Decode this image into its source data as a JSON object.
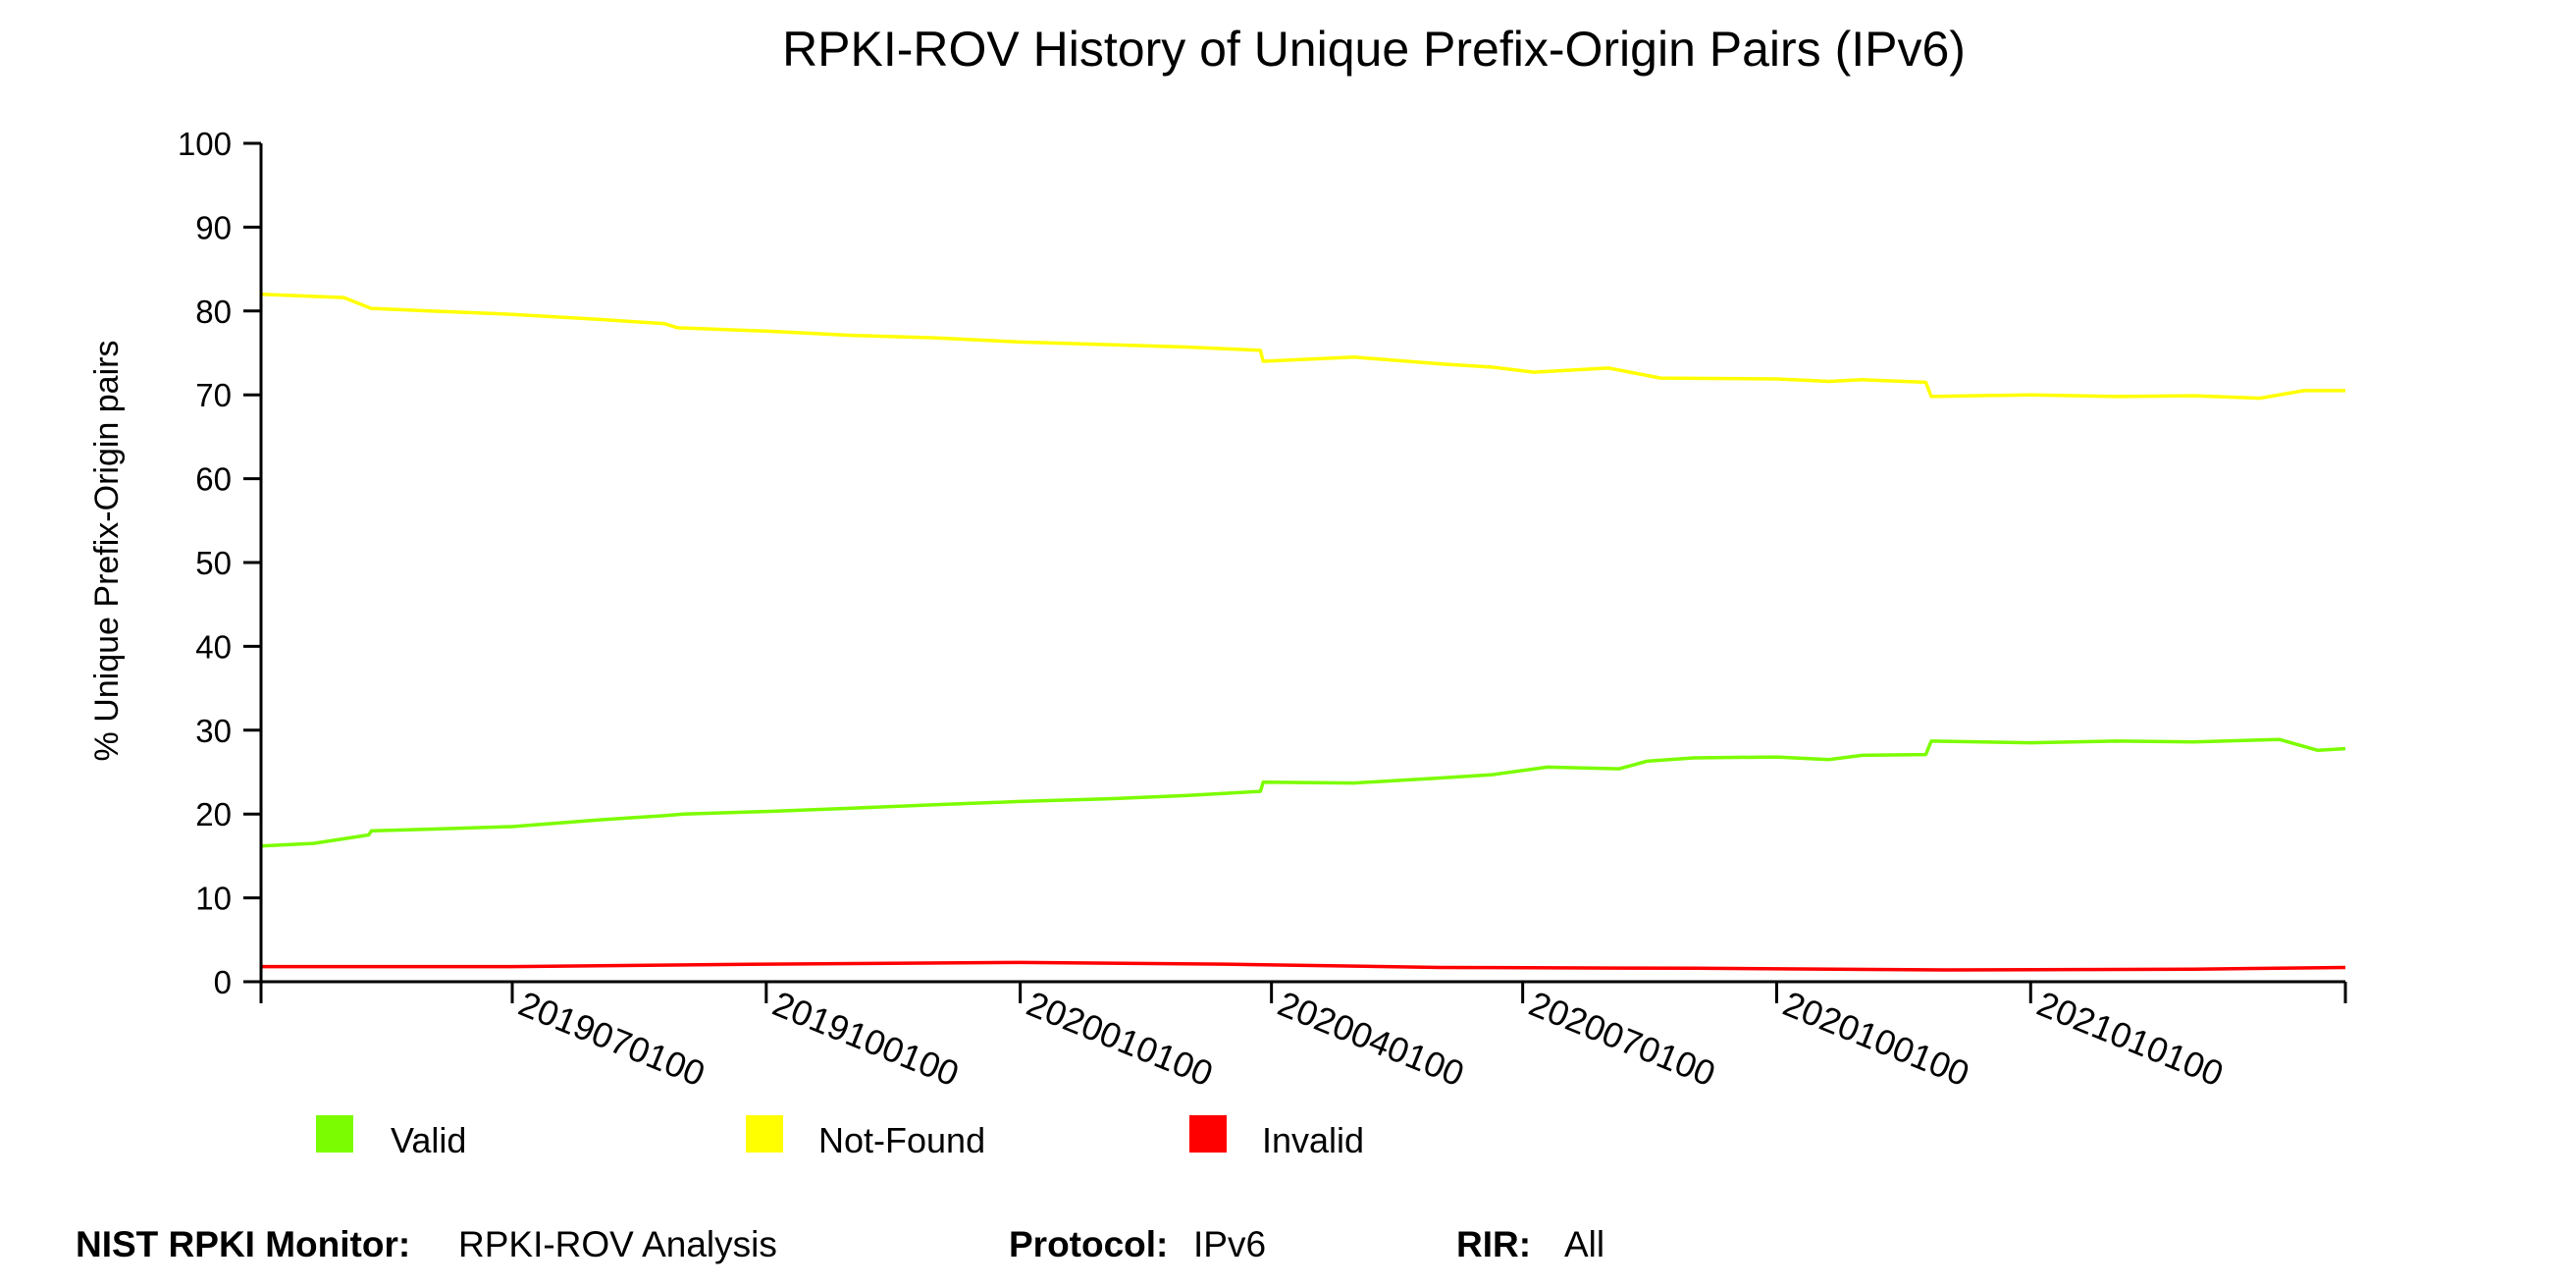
{
  "chart_data": {
    "type": "line",
    "title": "RPKI-ROV History of Unique Prefix-Origin Pairs (IPv6)",
    "xlabel": "",
    "ylabel": "% Unique Prefix-Origin pairs",
    "ylim": [
      0,
      100
    ],
    "yticks": [
      0,
      10,
      20,
      30,
      40,
      50,
      60,
      70,
      80,
      90,
      100
    ],
    "x_tick_labels": [
      "2019070100",
      "2019100100",
      "2020010100",
      "2020040100",
      "2020070100",
      "2020100100",
      "2021010100"
    ],
    "xlim": [
      "2019-04-01",
      "2021-04-25"
    ],
    "x_ticks": [
      "2019-04-01",
      "2019-07-01",
      "2019-10-01",
      "2020-01-01",
      "2020-04-01",
      "2020-07-01",
      "2020-10-01",
      "2021-01-01",
      "2021-04-25"
    ],
    "legend_placement": "bottom",
    "grid": false,
    "series": [
      {
        "name": "Valid",
        "color": "#7cfc00",
        "points": [
          [
            "2019-04-01",
            16.2
          ],
          [
            "2019-04-20",
            16.5
          ],
          [
            "2019-05-10",
            17.5
          ],
          [
            "2019-05-11",
            18.0
          ],
          [
            "2019-06-01",
            18.2
          ],
          [
            "2019-07-01",
            18.5
          ],
          [
            "2019-08-01",
            19.3
          ],
          [
            "2019-08-25",
            19.8
          ],
          [
            "2019-09-01",
            20.0
          ],
          [
            "2019-10-01",
            20.3
          ],
          [
            "2019-11-01",
            20.7
          ],
          [
            "2019-12-01",
            21.1
          ],
          [
            "2020-01-01",
            21.5
          ],
          [
            "2020-02-01",
            21.8
          ],
          [
            "2020-03-01",
            22.2
          ],
          [
            "2020-03-28",
            22.7
          ],
          [
            "2020-03-29",
            23.8
          ],
          [
            "2020-05-01",
            23.7
          ],
          [
            "2020-06-01",
            24.3
          ],
          [
            "2020-06-20",
            24.7
          ],
          [
            "2020-07-10",
            25.6
          ],
          [
            "2020-08-05",
            25.4
          ],
          [
            "2020-08-15",
            26.3
          ],
          [
            "2020-09-01",
            26.7
          ],
          [
            "2020-10-01",
            26.8
          ],
          [
            "2020-10-20",
            26.5
          ],
          [
            "2020-11-01",
            27.0
          ],
          [
            "2020-11-24",
            27.1
          ],
          [
            "2020-11-26",
            28.7
          ],
          [
            "2021-01-01",
            28.5
          ],
          [
            "2021-02-01",
            28.7
          ],
          [
            "2021-03-01",
            28.6
          ],
          [
            "2021-04-01",
            28.9
          ],
          [
            "2021-04-15",
            27.6
          ],
          [
            "2021-04-25",
            27.8
          ]
        ]
      },
      {
        "name": "Not-Found",
        "color": "#ffff00",
        "points": [
          [
            "2019-04-01",
            82.0
          ],
          [
            "2019-05-01",
            81.6
          ],
          [
            "2019-05-11",
            80.3
          ],
          [
            "2019-06-01",
            80.0
          ],
          [
            "2019-07-01",
            79.6
          ],
          [
            "2019-08-01",
            79.0
          ],
          [
            "2019-08-25",
            78.5
          ],
          [
            "2019-08-30",
            78.0
          ],
          [
            "2019-10-01",
            77.6
          ],
          [
            "2019-11-01",
            77.1
          ],
          [
            "2019-12-01",
            76.8
          ],
          [
            "2020-01-01",
            76.3
          ],
          [
            "2020-02-01",
            76.0
          ],
          [
            "2020-03-01",
            75.7
          ],
          [
            "2020-03-28",
            75.3
          ],
          [
            "2020-03-29",
            74.0
          ],
          [
            "2020-05-01",
            74.5
          ],
          [
            "2020-06-01",
            73.7
          ],
          [
            "2020-06-20",
            73.3
          ],
          [
            "2020-07-05",
            72.7
          ],
          [
            "2020-08-01",
            73.2
          ],
          [
            "2020-08-20",
            72.0
          ],
          [
            "2020-10-01",
            71.9
          ],
          [
            "2020-10-20",
            71.6
          ],
          [
            "2020-11-01",
            71.8
          ],
          [
            "2020-11-24",
            71.5
          ],
          [
            "2020-11-26",
            69.8
          ],
          [
            "2021-01-01",
            70.0
          ],
          [
            "2021-02-01",
            69.8
          ],
          [
            "2021-03-01",
            69.9
          ],
          [
            "2021-03-25",
            69.6
          ],
          [
            "2021-04-10",
            70.5
          ],
          [
            "2021-04-25",
            70.5
          ]
        ]
      },
      {
        "name": "Invalid",
        "color": "#ff0000",
        "points": [
          [
            "2019-04-01",
            1.8
          ],
          [
            "2019-07-01",
            1.8
          ],
          [
            "2019-10-01",
            2.1
          ],
          [
            "2020-01-01",
            2.3
          ],
          [
            "2020-03-15",
            2.1
          ],
          [
            "2020-06-01",
            1.7
          ],
          [
            "2020-09-01",
            1.6
          ],
          [
            "2020-12-01",
            1.4
          ],
          [
            "2021-03-01",
            1.5
          ],
          [
            "2021-04-25",
            1.7
          ]
        ]
      }
    ]
  },
  "footer": {
    "monitor_label": "NIST RPKI Monitor:",
    "monitor_value": "RPKI-ROV Analysis",
    "protocol_label": "Protocol:",
    "protocol_value": "IPv6",
    "rir_label": "RIR:",
    "rir_value": "All"
  }
}
